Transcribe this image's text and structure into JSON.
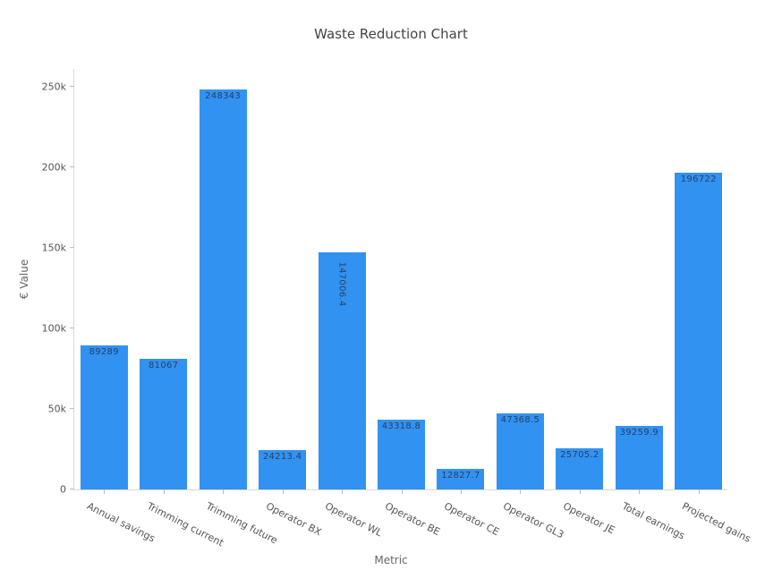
{
  "chart_data": {
    "type": "bar",
    "title": "Waste Reduction Chart",
    "xlabel": "Metric",
    "ylabel": "€ Value",
    "categories": [
      "Annual savings",
      "Trimming current",
      "Trimming future",
      "Operator BX",
      "Operator WL",
      "Operator BE",
      "Operator CE",
      "Operator GL3",
      "Operator JE",
      "Total earnings",
      "Projected gains"
    ],
    "values": [
      89289,
      81067,
      248343,
      24213.4,
      147006.4,
      43318.8,
      12827.7,
      47368.5,
      25705.2,
      39259.9,
      196722
    ],
    "bar_labels": [
      "89289",
      "81067",
      "248343",
      "24213.4",
      "147006.4",
      "43318.8",
      "12827.7",
      "47368.5",
      "25705.2",
      "39259.9",
      "196722"
    ],
    "vertical_label_indices": [
      4
    ],
    "ylim": [
      0,
      261667
    ],
    "yticks": {
      "values": [
        0,
        50000,
        100000,
        150000,
        200000,
        250000
      ],
      "labels": [
        "0",
        "50k",
        "100k",
        "150k",
        "200k",
        "250k"
      ]
    },
    "grid": false,
    "legend": "none",
    "colors": {
      "bar": "#3192f2",
      "bar_label": "#2a3f5f",
      "title_text": "#444444",
      "axis_text": "#555555",
      "axis_title_text": "#666666",
      "axis_line": "#d9d9d9",
      "tick_mark": "#bbbbbb",
      "background": "#ffffff"
    }
  }
}
